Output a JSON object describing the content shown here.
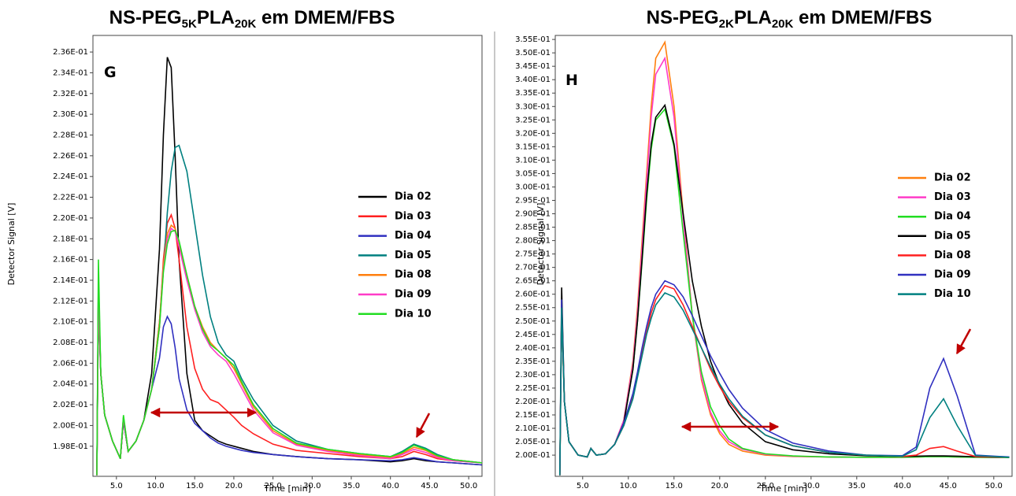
{
  "chart_data": [
    {
      "type": "line",
      "title": [
        "NS-PEG",
        "5K",
        "PLA",
        "20K",
        " em DMEM/FBS"
      ],
      "panel_label": "G",
      "x_label": "Time [min]",
      "y_label": "Detector Signal [V]",
      "x": [
        2.5,
        2.7,
        3.0,
        3.5,
        4.5,
        5.5,
        5.9,
        6.5,
        7.5,
        8.5,
        9.5,
        10.5,
        11.0,
        11.5,
        12.0,
        12.5,
        13.0,
        14.0,
        15.0,
        16.0,
        17.0,
        18.0,
        19.0,
        20.0,
        21.0,
        22.5,
        25.0,
        28.0,
        32.0,
        36.0,
        40.0,
        41.5,
        43.0,
        44.5,
        46.0,
        48.0,
        51.7
      ],
      "xlim": [
        2.0,
        51.7
      ],
      "ylim": [
        0.1951,
        0.2376
      ],
      "xticks": [
        {
          "value": 5,
          "label": "5.0"
        },
        {
          "value": 10,
          "label": "10.0"
        },
        {
          "value": 15,
          "label": "15.0"
        },
        {
          "value": 20,
          "label": "20.0"
        },
        {
          "value": 25,
          "label": "25.0"
        },
        {
          "value": 30,
          "label": "30.0"
        },
        {
          "value": 35,
          "label": "35.0"
        },
        {
          "value": 40,
          "label": "40.0"
        },
        {
          "value": 45,
          "label": "45.0"
        },
        {
          "value": 50,
          "label": "50.0"
        }
      ],
      "yticks": [
        {
          "value": 0.198,
          "label": "1.98E-01"
        },
        {
          "value": 0.2,
          "label": "2.00E-01"
        },
        {
          "value": 0.202,
          "label": "2.02E-01"
        },
        {
          "value": 0.204,
          "label": "2.04E-01"
        },
        {
          "value": 0.206,
          "label": "2.06E-01"
        },
        {
          "value": 0.208,
          "label": "2.08E-01"
        },
        {
          "value": 0.21,
          "label": "2.10E-01"
        },
        {
          "value": 0.212,
          "label": "2.12E-01"
        },
        {
          "value": 0.214,
          "label": "2.14E-01"
        },
        {
          "value": 0.216,
          "label": "2.16E-01"
        },
        {
          "value": 0.218,
          "label": "2.18E-01"
        },
        {
          "value": 0.22,
          "label": "2.20E-01"
        },
        {
          "value": 0.222,
          "label": "2.22E-01"
        },
        {
          "value": 0.224,
          "label": "2.24E-01"
        },
        {
          "value": 0.226,
          "label": "2.26E-01"
        },
        {
          "value": 0.228,
          "label": "2.28E-01"
        },
        {
          "value": 0.23,
          "label": "2.30E-01"
        },
        {
          "value": 0.232,
          "label": "2.32E-01"
        },
        {
          "value": 0.234,
          "label": "2.34E-01"
        },
        {
          "value": 0.236,
          "label": "2.36E-01"
        }
      ],
      "grid": false,
      "legend": "right",
      "series": [
        {
          "name": "Dia 02",
          "color": "#000000",
          "values": [
            0.1952,
            0.214,
            0.205,
            0.201,
            0.1985,
            0.1968,
            0.2005,
            0.1975,
            0.1985,
            0.2005,
            0.205,
            0.217,
            0.228,
            0.2355,
            0.2345,
            0.226,
            0.216,
            0.205,
            0.2005,
            0.1995,
            0.199,
            0.1985,
            0.1982,
            0.198,
            0.1978,
            0.1975,
            0.1972,
            0.197,
            0.1968,
            0.1967,
            0.1965,
            0.1966,
            0.1968,
            0.1966,
            0.1965,
            0.1964,
            0.1962
          ]
        },
        {
          "name": "Dia 03",
          "color": "#ff2020",
          "values": [
            0.1952,
            0.212,
            0.205,
            0.201,
            0.1985,
            0.1968,
            0.2005,
            0.1975,
            0.1985,
            0.2005,
            0.2035,
            0.2095,
            0.216,
            0.2195,
            0.2203,
            0.219,
            0.216,
            0.2095,
            0.2055,
            0.2035,
            0.2025,
            0.2022,
            0.2015,
            0.2008,
            0.2,
            0.1992,
            0.1982,
            0.1976,
            0.1973,
            0.197,
            0.1968,
            0.197,
            0.1975,
            0.1972,
            0.1968,
            0.1966,
            0.1964
          ]
        },
        {
          "name": "Dia 04",
          "color": "#3030c0",
          "values": [
            0.1952,
            0.212,
            0.205,
            0.201,
            0.1985,
            0.1968,
            0.2005,
            0.1975,
            0.1985,
            0.2005,
            0.2035,
            0.2065,
            0.2095,
            0.2105,
            0.2098,
            0.2075,
            0.2045,
            0.2015,
            0.2002,
            0.1995,
            0.1988,
            0.1983,
            0.198,
            0.1978,
            0.1976,
            0.1974,
            0.1972,
            0.197,
            0.1968,
            0.1967,
            0.1966,
            0.1967,
            0.1969,
            0.1967,
            0.1965,
            0.1964,
            0.1962
          ]
        },
        {
          "name": "Dia 05",
          "color": "#008080",
          "values": [
            0.1952,
            0.213,
            0.205,
            0.201,
            0.1985,
            0.1968,
            0.2008,
            0.1975,
            0.1985,
            0.2005,
            0.2035,
            0.21,
            0.215,
            0.2205,
            0.2245,
            0.2268,
            0.227,
            0.2245,
            0.2195,
            0.2145,
            0.2105,
            0.208,
            0.2068,
            0.2062,
            0.2045,
            0.2025,
            0.2,
            0.1985,
            0.1977,
            0.1973,
            0.197,
            0.1975,
            0.1982,
            0.1978,
            0.1972,
            0.1967,
            0.1964
          ]
        },
        {
          "name": "Dia 08",
          "color": "#ff7f0e",
          "values": [
            0.1952,
            0.213,
            0.205,
            0.201,
            0.1985,
            0.1968,
            0.2008,
            0.1975,
            0.1985,
            0.2005,
            0.2035,
            0.21,
            0.2155,
            0.2185,
            0.2193,
            0.219,
            0.2175,
            0.2145,
            0.2115,
            0.2095,
            0.208,
            0.2072,
            0.2065,
            0.2055,
            0.204,
            0.2018,
            0.1995,
            0.1982,
            0.1976,
            0.1972,
            0.1969,
            0.1973,
            0.1979,
            0.1976,
            0.197,
            0.1967,
            0.1964
          ]
        },
        {
          "name": "Dia 09",
          "color": "#ff3cc8",
          "values": [
            0.1952,
            0.213,
            0.205,
            0.201,
            0.1985,
            0.1968,
            0.2008,
            0.1975,
            0.1985,
            0.2005,
            0.2035,
            0.2095,
            0.215,
            0.218,
            0.219,
            0.2187,
            0.2172,
            0.214,
            0.2112,
            0.209,
            0.2076,
            0.2068,
            0.2062,
            0.205,
            0.2036,
            0.2015,
            0.1993,
            0.1981,
            0.1975,
            0.1971,
            0.1968,
            0.1972,
            0.1977,
            0.1974,
            0.1969,
            0.1966,
            0.1964
          ]
        },
        {
          "name": "Dia 10",
          "color": "#22dd22",
          "values": [
            0.1952,
            0.216,
            0.205,
            0.201,
            0.1985,
            0.1968,
            0.201,
            0.1975,
            0.1985,
            0.2005,
            0.2035,
            0.2095,
            0.2148,
            0.2175,
            0.2187,
            0.2188,
            0.2178,
            0.2145,
            0.2115,
            0.2093,
            0.2078,
            0.2072,
            0.2065,
            0.2058,
            0.2042,
            0.202,
            0.1997,
            0.1983,
            0.1977,
            0.1973,
            0.197,
            0.1974,
            0.1981,
            0.1977,
            0.1971,
            0.1967,
            0.1964
          ]
        }
      ]
    },
    {
      "type": "line",
      "title": [
        "NS-PEG",
        "2K",
        "PLA",
        "20K",
        " em DMEM/FBS"
      ],
      "panel_label": "H",
      "x_label": "Time [min]",
      "y_label": "Detector Signal [V]",
      "x": [
        2.5,
        2.7,
        3.0,
        3.5,
        4.5,
        5.5,
        5.9,
        6.5,
        7.5,
        8.5,
        9.5,
        10.5,
        11.0,
        11.5,
        12.0,
        12.5,
        13.0,
        14.0,
        15.0,
        16.0,
        17.0,
        18.0,
        19.0,
        20.0,
        21.0,
        22.5,
        25.0,
        28.0,
        32.0,
        36.0,
        40.0,
        41.5,
        43.0,
        44.5,
        46.0,
        48.0,
        51.7
      ],
      "xlim": [
        2.0,
        52.0
      ],
      "ylim": [
        0.1921,
        0.3565
      ],
      "xticks": [
        {
          "value": 5,
          "label": "5.0"
        },
        {
          "value": 10,
          "label": "10.0"
        },
        {
          "value": 15,
          "label": "15.0"
        },
        {
          "value": 20,
          "label": "20.0"
        },
        {
          "value": 25,
          "label": "25.0"
        },
        {
          "value": 30,
          "label": "30.0"
        },
        {
          "value": 35,
          "label": "35.0"
        },
        {
          "value": 40,
          "label": "40.0"
        },
        {
          "value": 45,
          "label": "45.0"
        },
        {
          "value": 50,
          "label": "50.0"
        }
      ],
      "yticks": [
        {
          "value": 0.2,
          "label": "2.00E-01"
        },
        {
          "value": 0.205,
          "label": "2.05E-01"
        },
        {
          "value": 0.21,
          "label": "2.10E-01"
        },
        {
          "value": 0.215,
          "label": "2.15E-01"
        },
        {
          "value": 0.22,
          "label": "2.20E-01"
        },
        {
          "value": 0.225,
          "label": "2.25E-01"
        },
        {
          "value": 0.23,
          "label": "2.30E-01"
        },
        {
          "value": 0.235,
          "label": "2.35E-01"
        },
        {
          "value": 0.24,
          "label": "2.40E-01"
        },
        {
          "value": 0.245,
          "label": "2.45E-01"
        },
        {
          "value": 0.25,
          "label": "2.50E-01"
        },
        {
          "value": 0.255,
          "label": "2.55E-01"
        },
        {
          "value": 0.26,
          "label": "2.60E-01"
        },
        {
          "value": 0.265,
          "label": "2.65E-01"
        },
        {
          "value": 0.27,
          "label": "2.70E-01"
        },
        {
          "value": 0.275,
          "label": "2.75E-01"
        },
        {
          "value": 0.28,
          "label": "2.80E-01"
        },
        {
          "value": 0.285,
          "label": "2.85E-01"
        },
        {
          "value": 0.29,
          "label": "2.90E-01"
        },
        {
          "value": 0.295,
          "label": "2.95E-01"
        },
        {
          "value": 0.3,
          "label": "3.00E-01"
        },
        {
          "value": 0.305,
          "label": "3.05E-01"
        },
        {
          "value": 0.31,
          "label": "3.10E-01"
        },
        {
          "value": 0.315,
          "label": "3.15E-01"
        },
        {
          "value": 0.32,
          "label": "3.20E-01"
        },
        {
          "value": 0.325,
          "label": "3.25E-01"
        },
        {
          "value": 0.33,
          "label": "3.30E-01"
        },
        {
          "value": 0.335,
          "label": "3.35E-01"
        },
        {
          "value": 0.34,
          "label": "3.40E-01"
        },
        {
          "value": 0.345,
          "label": "3.45E-01"
        },
        {
          "value": 0.35,
          "label": "3.50E-01"
        },
        {
          "value": 0.355,
          "label": "3.55E-01"
        }
      ],
      "grid": false,
      "legend": "right",
      "series": [
        {
          "name": "Dia 02",
          "color": "#ff7f0e",
          "values": [
            0.1925,
            0.255,
            0.22,
            0.205,
            0.2,
            0.1993,
            0.2025,
            0.2,
            0.2005,
            0.204,
            0.213,
            0.235,
            0.255,
            0.28,
            0.305,
            0.33,
            0.348,
            0.354,
            0.33,
            0.29,
            0.252,
            0.228,
            0.215,
            0.208,
            0.204,
            0.2015,
            0.2,
            0.1995,
            0.1993,
            0.1992,
            0.1992,
            0.1993,
            0.1994,
            0.1994,
            0.1993,
            0.1992,
            0.1991
          ]
        },
        {
          "name": "Dia 03",
          "color": "#ff3cc8",
          "values": [
            0.1925,
            0.255,
            0.22,
            0.205,
            0.2,
            0.1993,
            0.2025,
            0.2,
            0.2005,
            0.204,
            0.213,
            0.234,
            0.253,
            0.277,
            0.302,
            0.326,
            0.342,
            0.348,
            0.326,
            0.288,
            0.252,
            0.229,
            0.216,
            0.209,
            0.205,
            0.2022,
            0.2003,
            0.1996,
            0.1993,
            0.1992,
            0.1992,
            0.1993,
            0.1994,
            0.1994,
            0.1993,
            0.1992,
            0.1991
          ]
        },
        {
          "name": "Dia 04",
          "color": "#22dd22",
          "values": [
            0.1925,
            0.255,
            0.22,
            0.205,
            0.2,
            0.1993,
            0.2025,
            0.2,
            0.2005,
            0.204,
            0.212,
            0.232,
            0.25,
            0.272,
            0.295,
            0.314,
            0.325,
            0.329,
            0.315,
            0.283,
            0.252,
            0.231,
            0.218,
            0.211,
            0.206,
            0.2025,
            0.2005,
            0.1997,
            0.1993,
            0.1992,
            0.1992,
            0.1993,
            0.1994,
            0.1994,
            0.1993,
            0.1992,
            0.1991
          ]
        },
        {
          "name": "Dia 05",
          "color": "#000000",
          "values": [
            0.1925,
            0.2625,
            0.22,
            0.205,
            0.2,
            0.1993,
            0.2025,
            0.2,
            0.2005,
            0.204,
            0.212,
            0.232,
            0.25,
            0.273,
            0.297,
            0.316,
            0.326,
            0.3305,
            0.316,
            0.29,
            0.265,
            0.248,
            0.235,
            0.226,
            0.219,
            0.212,
            0.205,
            0.202,
            0.2005,
            0.1998,
            0.1995,
            0.1996,
            0.1997,
            0.1997,
            0.1996,
            0.1994,
            0.1992
          ]
        },
        {
          "name": "Dia 08",
          "color": "#ff2020",
          "values": [
            0.1925,
            0.255,
            0.22,
            0.205,
            0.2,
            0.1993,
            0.2025,
            0.2,
            0.2005,
            0.204,
            0.211,
            0.222,
            0.23,
            0.238,
            0.246,
            0.253,
            0.258,
            0.2632,
            0.262,
            0.256,
            0.248,
            0.24,
            0.232,
            0.2255,
            0.22,
            0.214,
            0.2075,
            0.2035,
            0.201,
            0.2,
            0.1995,
            0.2,
            0.2025,
            0.2032,
            0.2015,
            0.1995,
            0.1992
          ]
        },
        {
          "name": "Dia 09",
          "color": "#3030c0",
          "values": [
            0.1925,
            0.258,
            0.22,
            0.205,
            0.2,
            0.1993,
            0.2025,
            0.2,
            0.2005,
            0.204,
            0.212,
            0.223,
            0.231,
            0.24,
            0.248,
            0.255,
            0.26,
            0.265,
            0.2635,
            0.259,
            0.252,
            0.2445,
            0.237,
            0.2305,
            0.2245,
            0.2175,
            0.2095,
            0.2045,
            0.2015,
            0.2,
            0.1998,
            0.203,
            0.225,
            0.236,
            0.222,
            0.2,
            0.1993
          ]
        },
        {
          "name": "Dia 10",
          "color": "#008080",
          "values": [
            0.1925,
            0.255,
            0.22,
            0.205,
            0.2,
            0.1993,
            0.2025,
            0.2,
            0.2005,
            0.204,
            0.211,
            0.221,
            0.229,
            0.237,
            0.245,
            0.251,
            0.256,
            0.2605,
            0.259,
            0.254,
            0.247,
            0.24,
            0.233,
            0.2265,
            0.221,
            0.2145,
            0.2075,
            0.2035,
            0.201,
            0.2,
            0.1996,
            0.202,
            0.214,
            0.221,
            0.211,
            0.1998,
            0.1992
          ]
        }
      ]
    }
  ]
}
